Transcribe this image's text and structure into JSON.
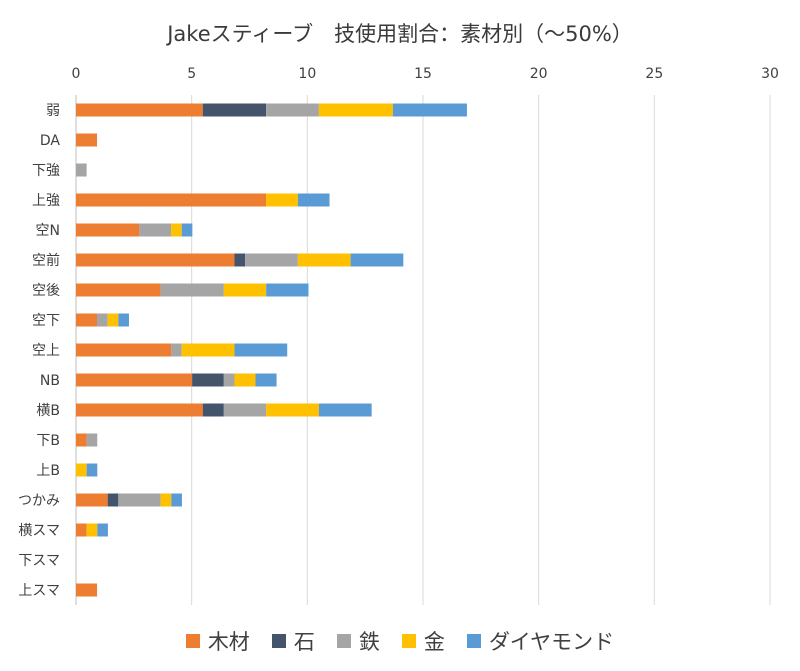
{
  "chart_data": {
    "type": "bar",
    "orientation": "horizontal",
    "stacked": true,
    "title": "Jakeスティーブ　技使用割合：素材別（～50%）",
    "xlim": [
      0,
      30
    ],
    "xticks": [
      "0",
      "5",
      "10",
      "15",
      "20",
      "25",
      "30"
    ],
    "grid": true,
    "legend_position": "bottom",
    "categories": [
      "弱",
      "DA",
      "下強",
      "上強",
      "空N",
      "空前",
      "空後",
      "空下",
      "空上",
      "NB",
      "横B",
      "下B",
      "上B",
      "つかみ",
      "横スマ",
      "下スマ",
      "上スマ"
    ],
    "series": [
      {
        "name": "木材",
        "color": "#ED7D31",
        "values": [
          5.48,
          0.91,
          0,
          8.22,
          2.74,
          6.85,
          3.65,
          0.91,
          4.11,
          5.02,
          5.48,
          0.46,
          0,
          1.37,
          0.46,
          0,
          0.91
        ]
      },
      {
        "name": "石",
        "color": "#44546A",
        "values": [
          2.74,
          0,
          0,
          0,
          0,
          0.46,
          0,
          0,
          0,
          1.37,
          0.91,
          0,
          0,
          0.46,
          0,
          0,
          0
        ]
      },
      {
        "name": "鉄",
        "color": "#A5A5A5",
        "values": [
          2.28,
          0,
          0.46,
          0,
          1.37,
          2.28,
          2.74,
          0.46,
          0.46,
          0.46,
          1.83,
          0.46,
          0,
          1.83,
          0,
          0,
          0
        ]
      },
      {
        "name": "金",
        "color": "#FFC000",
        "values": [
          3.2,
          0,
          0,
          1.37,
          0.46,
          2.28,
          1.83,
          0.46,
          2.28,
          0.91,
          2.28,
          0,
          0.46,
          0.46,
          0.46,
          0,
          0
        ]
      },
      {
        "name": "ダイヤモンド",
        "color": "#5B9BD5",
        "values": [
          3.2,
          0,
          0,
          1.37,
          0.46,
          2.28,
          1.83,
          0.46,
          2.28,
          0.91,
          2.28,
          0,
          0.46,
          0.46,
          0.46,
          0,
          0
        ]
      }
    ]
  }
}
